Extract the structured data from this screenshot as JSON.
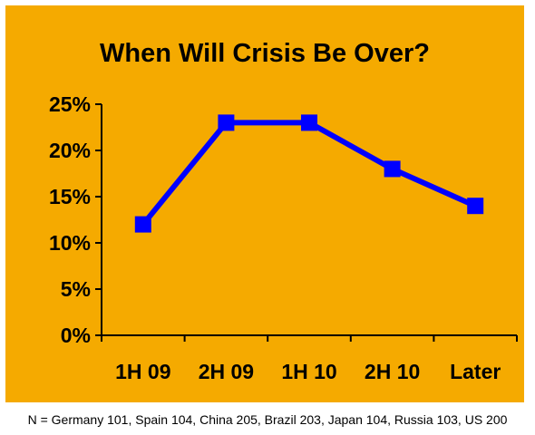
{
  "chart_data": {
    "type": "line",
    "title": "When Will Crisis Be Over?",
    "categories": [
      "1H 09",
      "2H 09",
      "1H 10",
      "2H 10",
      "Later"
    ],
    "series": [
      {
        "values": [
          12,
          23,
          23,
          18,
          14
        ]
      }
    ],
    "y_ticks": [
      "0%",
      "5%",
      "10%",
      "15%",
      "20%",
      "25%"
    ],
    "ylim": [
      0,
      25
    ],
    "grid": false,
    "legend": "none"
  },
  "colors": {
    "background": "#F5AA00",
    "line": "#0000FF"
  },
  "footnote": "N = Germany 101, Spain 104, China 205, Brazil 203, Japan 104, Russia 103, US 200"
}
